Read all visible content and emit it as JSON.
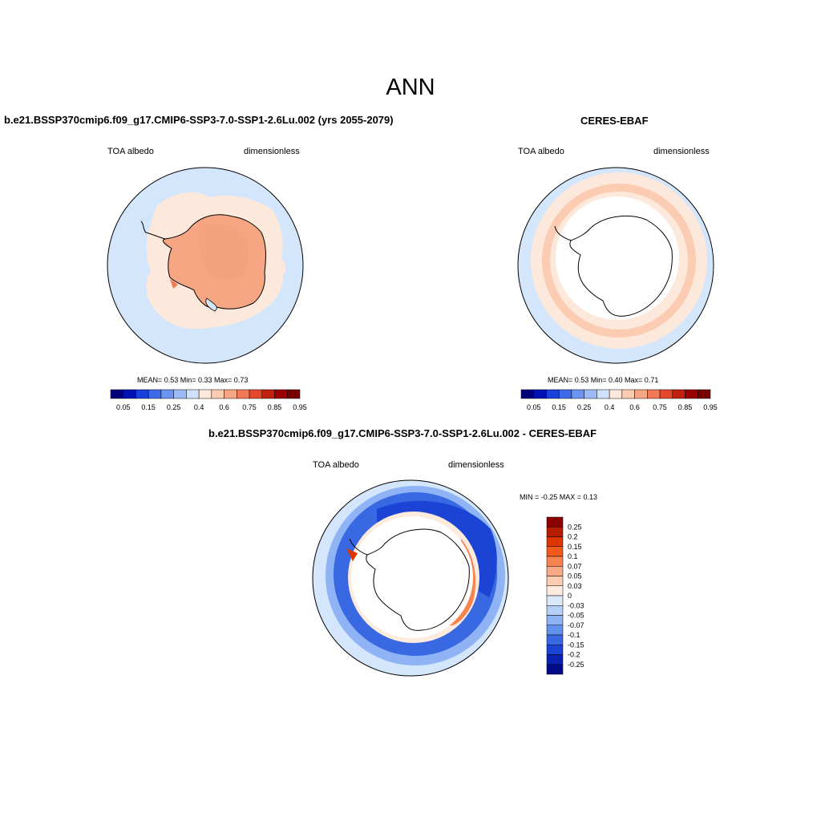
{
  "page": {
    "title": "ANN"
  },
  "panels": {
    "model": {
      "title": "b.e21.BSSP370cmip6.f09_g17.CMIP6-SSP3-7.0-SSP1-2.6Lu.002 (yrs 2055-2079)",
      "left_label": "TOA albedo",
      "right_label": "dimensionless",
      "stats": "MEAN=   0.53  Min=   0.33  Max=   0.73"
    },
    "obs": {
      "title": "CERES-EBAF",
      "left_label": "TOA albedo",
      "right_label": "dimensionless",
      "stats": "MEAN=   0.53  Min=   0.40  Max=   0.71"
    },
    "diff": {
      "title": "b.e21.BSSP370cmip6.f09_g17.CMIP6-SSP3-7.0-SSP1-2.6Lu.002 - CERES-EBAF",
      "left_label": "TOA albedo",
      "right_label": "dimensionless",
      "stats": "MIN =  -0.25 MAX =   0.13"
    }
  },
  "colorbars": {
    "abs": {
      "colors": [
        "#00007a",
        "#0011b3",
        "#1a3fdc",
        "#3d6ae8",
        "#6b93f0",
        "#9cbaf6",
        "#cfe1fb",
        "#fde8dc",
        "#fbcbb2",
        "#f7a683",
        "#f17955",
        "#e4472a",
        "#c4200e",
        "#9a0000",
        "#780000"
      ],
      "labels": [
        "0.05",
        "0.15",
        "0.25",
        "0.4",
        "0.6",
        "0.75",
        "0.85",
        "0.95"
      ]
    },
    "diff": {
      "colors": [
        "#8b0000",
        "#b81c00",
        "#dc3500",
        "#f25a1c",
        "#f7834f",
        "#f9a985",
        "#fccdb3",
        "#fdebdd",
        "#dbe8fa",
        "#b7d0f8",
        "#8fb3f4",
        "#6291ee",
        "#3868e2",
        "#1b44d4",
        "#0a22b4",
        "#000c8a"
      ],
      "labels": [
        "0.25",
        "0.2",
        "0.15",
        "0.1",
        "0.07",
        "0.05",
        "0.03",
        "0",
        "-0.03",
        "-0.05",
        "-0.07",
        "-0.1",
        "-0.15",
        "-0.2",
        "-0.25"
      ]
    }
  },
  "map_colors": {
    "ocean_light_blue": "#d3e6fb",
    "peach": "#fde8dc",
    "salmon": "#f7a683",
    "blue_mid": "#6291ee",
    "blue_strong": "#1b44d4",
    "white": "#ffffff"
  }
}
